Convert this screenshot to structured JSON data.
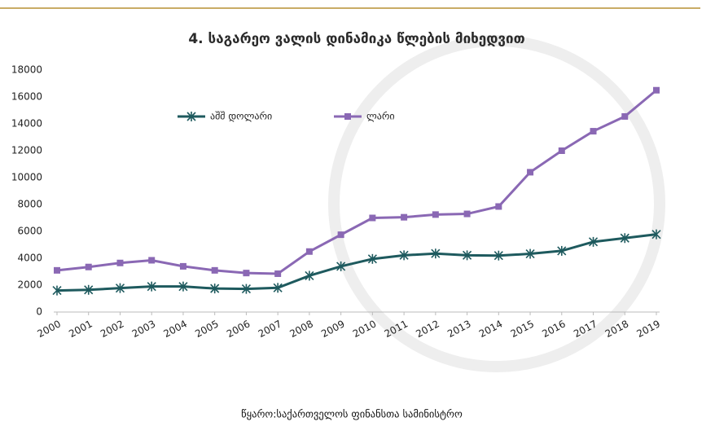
{
  "chart_data": {
    "type": "line",
    "title": "4. საგარეო ვალის დინამიკა წლების მიხედვით",
    "source": "წყარო:საქართველოს ფინანსთა სამინისტრო",
    "categories": [
      "2000",
      "2001",
      "2002",
      "2003",
      "2004",
      "2005",
      "2006",
      "2007",
      "2008",
      "2009",
      "2010",
      "2011",
      "2012",
      "2013",
      "2014",
      "2015",
      "2016",
      "2017",
      "2018",
      "2019"
    ],
    "series": [
      {
        "name": "აშშ დოლარი",
        "color": "#1e5a5e",
        "marker": "star",
        "values": [
          1600,
          1650,
          1780,
          1900,
          1900,
          1750,
          1720,
          1800,
          2700,
          3400,
          3950,
          4220,
          4350,
          4220,
          4200,
          4330,
          4550,
          5220,
          5500,
          5780
        ]
      },
      {
        "name": "ლარი",
        "color": "#8a68b4",
        "marker": "square",
        "values": [
          3100,
          3350,
          3650,
          3850,
          3400,
          3100,
          2900,
          2850,
          4500,
          5750,
          7000,
          7050,
          7250,
          7300,
          7850,
          10400,
          12000,
          13450,
          14550,
          16500
        ]
      }
    ],
    "ylim": [
      0,
      18000
    ],
    "yticks": [
      0,
      2000,
      4000,
      6000,
      8000,
      10000,
      12000,
      14000,
      16000,
      18000
    ],
    "grid": false,
    "legend": "top"
  }
}
